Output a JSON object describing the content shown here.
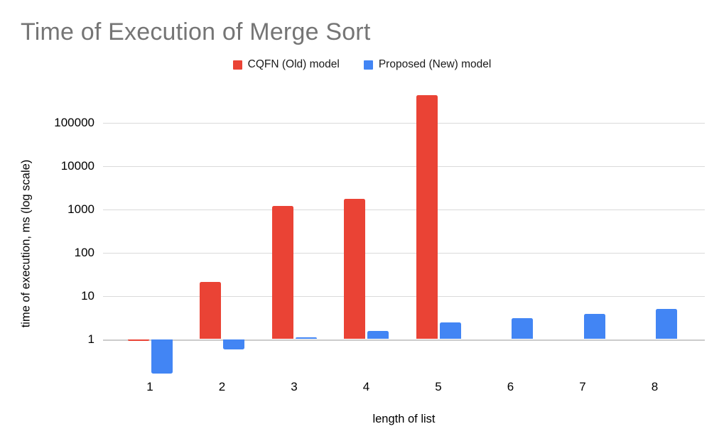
{
  "title": "Time of Execution of Merge Sort",
  "chart_data": {
    "type": "bar",
    "title": "Time of Execution of Merge Sort",
    "xlabel": "length of list",
    "ylabel": "time of execution, ms (log scale)",
    "categories": [
      "1",
      "2",
      "3",
      "4",
      "5",
      "6",
      "7",
      "8"
    ],
    "series": [
      {
        "name": "CQFN (Old) model",
        "color": "#ea4335",
        "values": [
          0.9,
          21,
          1200,
          1700,
          430000,
          null,
          null,
          null
        ]
      },
      {
        "name": "Proposed (New) model",
        "color": "#4285f4",
        "values": [
          0.16,
          0.57,
          1.1,
          1.55,
          2.4,
          3.1,
          3.8,
          4.9
        ]
      }
    ],
    "y_axis": {
      "scale": "log",
      "ticks": [
        1,
        10,
        100,
        1000,
        10000,
        100000
      ],
      "baseline_value": 1
    },
    "legend_position": "top-center",
    "grid": true,
    "colors": {
      "title_text": "#757575",
      "axis_text": "#000000",
      "gridline": "#dadada",
      "background": "#ffffff"
    }
  }
}
